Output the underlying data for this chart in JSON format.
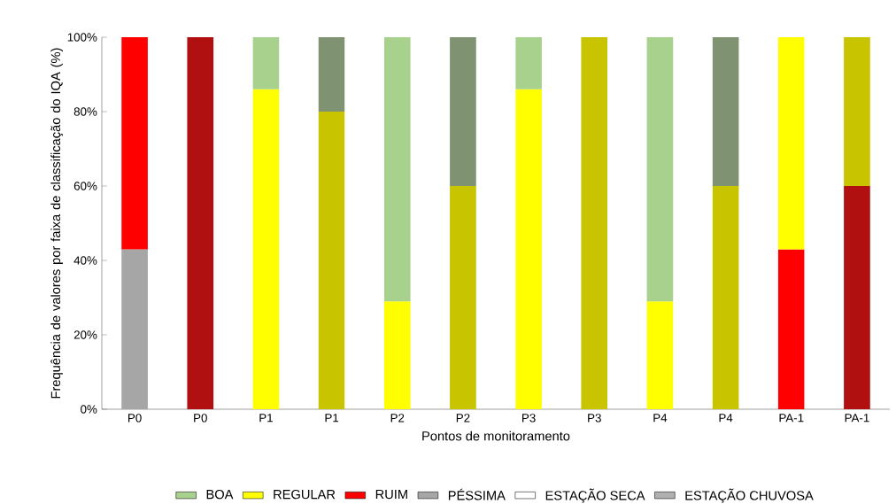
{
  "chart_data": {
    "type": "bar",
    "stacked": true,
    "xlabel": "Pontos de monitoramento",
    "ylabel": "Frequência de valores por faixa de classificação do IQA (%)",
    "categories": [
      "P0",
      "P0",
      "P1",
      "P1",
      "P2",
      "P2",
      "P3",
      "P3",
      "P4",
      "P4",
      "PA-1",
      "PA-1"
    ],
    "series": [
      {
        "name": "PÉSSIMA",
        "color": "#a6a6a6",
        "values": [
          43,
          null,
          null,
          null,
          null,
          null,
          null,
          null,
          null,
          null,
          null,
          null
        ]
      },
      {
        "name": "RUIM",
        "color": "#ff0000",
        "values": [
          57,
          null,
          null,
          null,
          null,
          null,
          null,
          null,
          null,
          null,
          43,
          null
        ]
      },
      {
        "name": "REGULAR",
        "color": "#ffff00",
        "values": [
          null,
          null,
          86,
          null,
          29,
          null,
          86,
          null,
          29,
          null,
          57,
          null
        ]
      },
      {
        "name": "BOA",
        "color": "#a9d18e",
        "values": [
          null,
          null,
          14,
          null,
          71,
          null,
          14,
          null,
          71,
          null,
          null,
          null
        ]
      },
      {
        "color": "#b01010",
        "values": [
          null,
          100,
          null,
          null,
          null,
          null,
          null,
          null,
          null,
          null,
          null,
          60
        ]
      },
      {
        "color": "#c8c400",
        "values": [
          null,
          null,
          null,
          80,
          null,
          60,
          null,
          100,
          null,
          60,
          null,
          40
        ]
      },
      {
        "color": "#7f9373",
        "values": [
          null,
          null,
          null,
          20,
          null,
          40,
          null,
          null,
          null,
          40,
          null,
          null
        ]
      },
      {
        "name": "ESTAÇÃO SECA",
        "color": "#ffffff",
        "values": [
          null,
          null,
          null,
          null,
          null,
          null,
          null,
          null,
          null,
          null,
          null,
          null
        ]
      },
      {
        "name": "ESTAÇÃO CHUVOSA",
        "color": "#b0b0b0",
        "values": [
          null,
          null,
          null,
          null,
          null,
          null,
          null,
          null,
          null,
          null,
          null,
          null
        ]
      }
    ],
    "ylim": [
      0,
      100
    ],
    "yticks": [
      {
        "value": 0,
        "label": "0%"
      },
      {
        "value": 20,
        "label": "20%"
      },
      {
        "value": 40,
        "label": "40%"
      },
      {
        "value": 60,
        "label": "60%"
      },
      {
        "value": 80,
        "label": "80%"
      },
      {
        "value": 100,
        "label": "100%"
      }
    ],
    "legend": "bottom"
  }
}
